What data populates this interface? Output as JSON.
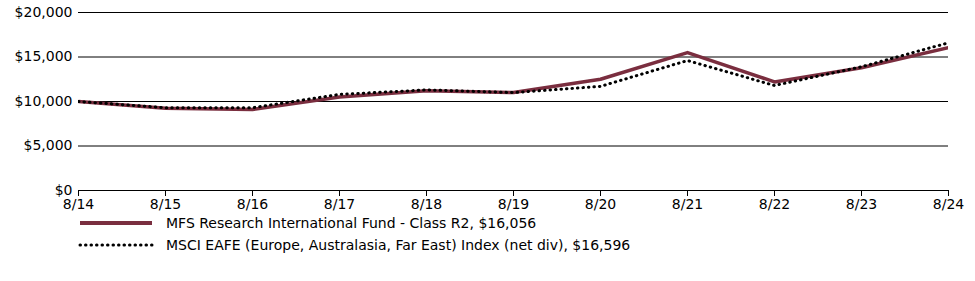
{
  "chart_data": {
    "type": "line",
    "x": [
      "8/14",
      "8/15",
      "8/16",
      "8/17",
      "8/18",
      "8/19",
      "8/20",
      "8/21",
      "8/22",
      "8/23",
      "8/24"
    ],
    "series": [
      {
        "name": "MFS Research International Fund - Class R2, $16,056",
        "color": "#7a2e3f",
        "line_style": "solid",
        "values": [
          10000,
          9250,
          9100,
          10500,
          11200,
          11000,
          12500,
          15500,
          12200,
          13800,
          16056
        ]
      },
      {
        "name": "MSCI EAFE (Europe, Australasia, Far East) Index (net div), $16,596",
        "color": "#000000",
        "line_style": "dotted",
        "values": [
          10000,
          9300,
          9300,
          10800,
          11300,
          11000,
          11700,
          14600,
          11800,
          13900,
          16596
        ]
      }
    ],
    "ylim": [
      0,
      20000
    ],
    "yticks": [
      {
        "value": 0,
        "label": "$0"
      },
      {
        "value": 5000,
        "label": "$5,000"
      },
      {
        "value": 10000,
        "label": "$10,000"
      },
      {
        "value": 15000,
        "label": "$15,000"
      },
      {
        "value": 20000,
        "label": "$20,000"
      }
    ],
    "grid": true,
    "legend": "bottom"
  }
}
